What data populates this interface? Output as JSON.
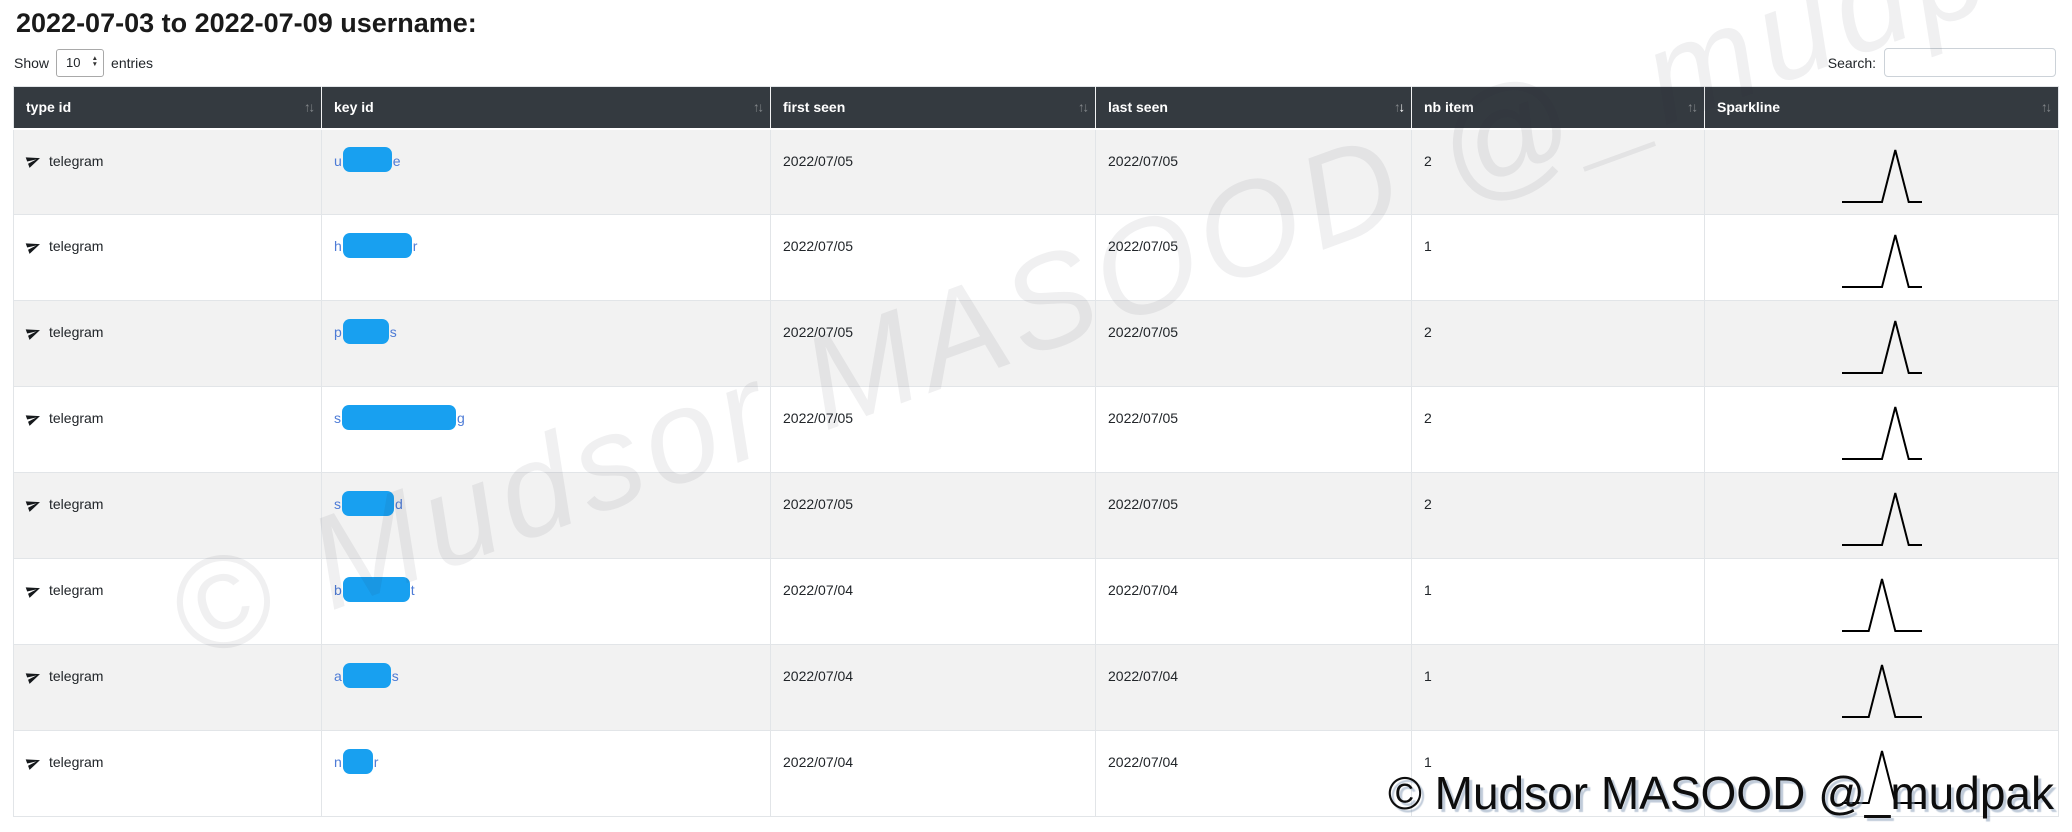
{
  "page": {
    "title": "2022-07-03 to 2022-07-09 username:",
    "show_label": "Show",
    "page_size": "10",
    "entries_label": "entries",
    "search_label": "Search:",
    "search_value": ""
  },
  "watermark": {
    "diagonal_text": "© Mudsor MASOOD @_mudpak",
    "corner_text": "© Mudsor MASOOD @_mudpak"
  },
  "colors": {
    "header_bg": "#343a40",
    "stripe_row": "#f2f2f2",
    "redaction_blue": "#18a0f0",
    "link_blue": "#4d7bd6",
    "sparkline_stroke": "#000000"
  },
  "table": {
    "columns": [
      {
        "label": "type id",
        "sort": "none"
      },
      {
        "label": "key id",
        "sort": "none"
      },
      {
        "label": "first seen",
        "sort": "none"
      },
      {
        "label": "last seen",
        "sort": "desc"
      },
      {
        "label": "nb item",
        "sort": "none"
      },
      {
        "label": "Sparkline",
        "sort": "none"
      }
    ],
    "rows": [
      {
        "type": "telegram",
        "key_prefix": "u",
        "key_suffix": "e",
        "redact_width": 49,
        "first_seen": "2022/07/05",
        "last_seen": "2022/07/05",
        "nb_item": "2",
        "sparkline": [
          0,
          0,
          0,
          0,
          2,
          0,
          0
        ]
      },
      {
        "type": "telegram",
        "key_prefix": "h",
        "key_suffix": "r",
        "redact_width": 69,
        "first_seen": "2022/07/05",
        "last_seen": "2022/07/05",
        "nb_item": "1",
        "sparkline": [
          0,
          0,
          0,
          0,
          1,
          0,
          0
        ]
      },
      {
        "type": "telegram",
        "key_prefix": "p",
        "key_suffix": "s",
        "redact_width": 46,
        "first_seen": "2022/07/05",
        "last_seen": "2022/07/05",
        "nb_item": "2",
        "sparkline": [
          0,
          0,
          0,
          0,
          2,
          0,
          0
        ]
      },
      {
        "type": "telegram",
        "key_prefix": "s",
        "key_suffix": "g",
        "redact_width": 114,
        "first_seen": "2022/07/05",
        "last_seen": "2022/07/05",
        "nb_item": "2",
        "sparkline": [
          0,
          0,
          0,
          0,
          2,
          0,
          0
        ]
      },
      {
        "type": "telegram",
        "key_prefix": "s",
        "key_suffix": "d",
        "redact_width": 52,
        "first_seen": "2022/07/05",
        "last_seen": "2022/07/05",
        "nb_item": "2",
        "sparkline": [
          0,
          0,
          0,
          0,
          2,
          0,
          0
        ]
      },
      {
        "type": "telegram",
        "key_prefix": "b",
        "key_suffix": "t",
        "redact_width": 67,
        "first_seen": "2022/07/04",
        "last_seen": "2022/07/04",
        "nb_item": "1",
        "sparkline": [
          0,
          0,
          0,
          1,
          0,
          0,
          0
        ]
      },
      {
        "type": "telegram",
        "key_prefix": "a",
        "key_suffix": "s",
        "redact_width": 48,
        "first_seen": "2022/07/04",
        "last_seen": "2022/07/04",
        "nb_item": "1",
        "sparkline": [
          0,
          0,
          0,
          1,
          0,
          0,
          0
        ]
      },
      {
        "type": "telegram",
        "key_prefix": "n",
        "key_suffix": "r",
        "redact_width": 30,
        "first_seen": "2022/07/04",
        "last_seen": "2022/07/04",
        "nb_item": "1",
        "sparkline": [
          0,
          0,
          0,
          1,
          0,
          0,
          0
        ]
      }
    ]
  }
}
